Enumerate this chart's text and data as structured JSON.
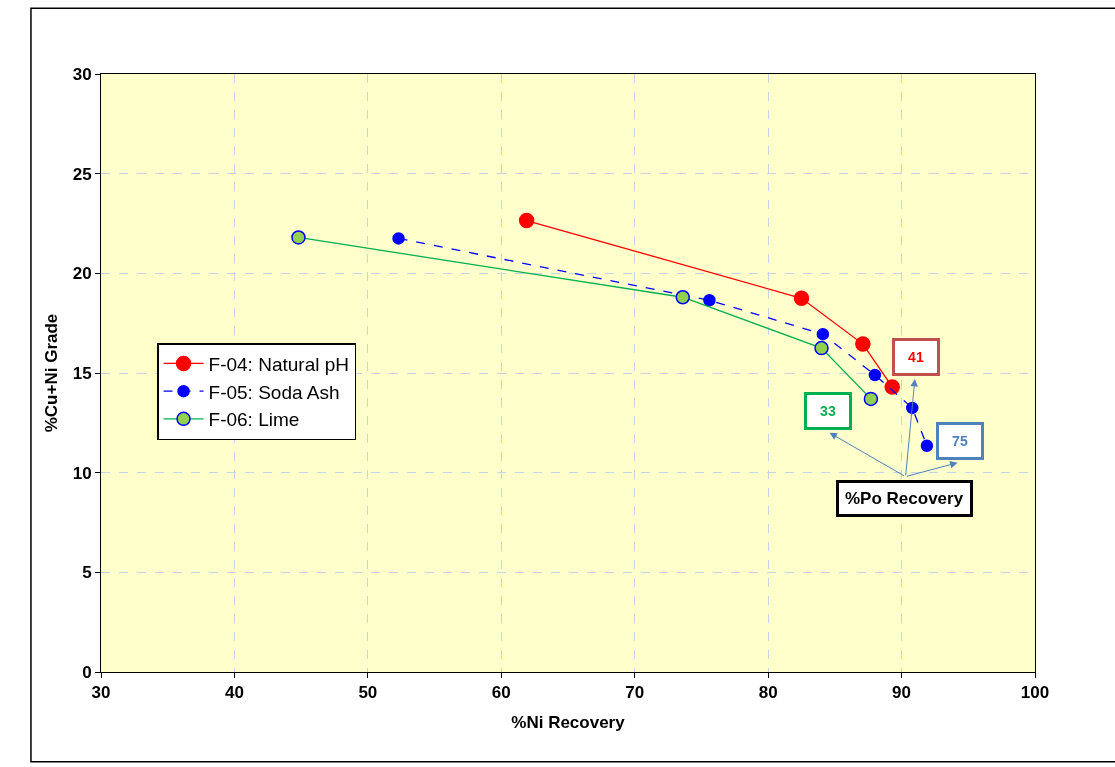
{
  "chart_data": {
    "type": "line",
    "xlabel": "%Ni Recovery",
    "ylabel": "%Cu+Ni Grade",
    "xlim": [
      30,
      100
    ],
    "xticks": [
      30,
      40,
      50,
      60,
      70,
      80,
      90,
      100
    ],
    "ylim": [
      0,
      30
    ],
    "yticks": [
      0,
      5,
      10,
      15,
      20,
      25,
      30
    ],
    "grid": true,
    "legend": "left",
    "marker": "circle",
    "series": [
      {
        "name": "F-04: Natural pH",
        "color": "#ff0000",
        "line_style": "solid",
        "x": [
          61.9,
          82.5,
          87.1,
          89.3
        ],
        "values": [
          22.65,
          18.75,
          16.45,
          14.3
        ]
      },
      {
        "name": "F-05: Soda Ash",
        "color": "#0000ff",
        "line_style": "dashed",
        "x": [
          52.3,
          75.6,
          84.1,
          88.0,
          90.8,
          91.9
        ],
        "values": [
          21.75,
          18.65,
          16.95,
          14.9,
          13.25,
          11.35
        ]
      },
      {
        "name": "F-06: Lime",
        "color": "#92d050",
        "line_style": "solid",
        "x": [
          44.8,
          73.6,
          84.0,
          87.7
        ],
        "values": [
          21.8,
          18.8,
          16.25,
          13.7
        ]
      }
    ],
    "annotations": [
      {
        "text": "41"
      },
      {
        "text": "33"
      },
      {
        "text": "75"
      },
      {
        "text": "%Po Recovery"
      }
    ]
  }
}
